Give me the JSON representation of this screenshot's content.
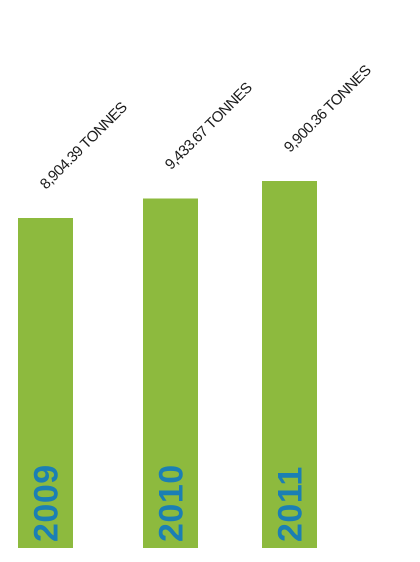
{
  "colors": {
    "bar": "#8dba3e",
    "year_text": "#1b7fb4",
    "value_text": "#1a1a1a"
  },
  "chart_data": {
    "type": "bar",
    "orientation": "vertical",
    "title": "",
    "xlabel": "",
    "ylabel": "",
    "grid": false,
    "legend": "none",
    "categories": [
      "2009",
      "2010",
      "2011"
    ],
    "values": [
      8904.39,
      9433.67,
      9900.36
    ],
    "value_labels": [
      "8,904.39 TONNES",
      "9,433.67 TONNES",
      "9,900.36 TONNES"
    ],
    "unit": "TONNES"
  }
}
